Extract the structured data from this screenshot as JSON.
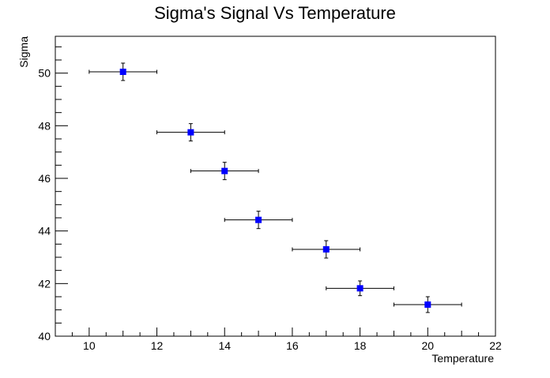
{
  "chart_data": {
    "type": "scatter",
    "title": "Sigma's Signal Vs Temperature",
    "xlabel": "Temperature",
    "ylabel": "Sigma",
    "xlim": [
      9,
      22
    ],
    "ylim": [
      40,
      51.4
    ],
    "x_ticks": [
      10,
      12,
      14,
      16,
      18,
      20,
      22
    ],
    "y_ticks": [
      40,
      42,
      44,
      46,
      48,
      50
    ],
    "grid": false,
    "marker_color": "#0000ff",
    "points": [
      {
        "x": 11,
        "y": 50.05,
        "xerr": 1,
        "yerr": 0.33
      },
      {
        "x": 13,
        "y": 47.75,
        "xerr": 1,
        "yerr": 0.33
      },
      {
        "x": 14,
        "y": 46.28,
        "xerr": 1,
        "yerr": 0.33
      },
      {
        "x": 15,
        "y": 44.42,
        "xerr": 1,
        "yerr": 0.33
      },
      {
        "x": 17,
        "y": 43.3,
        "xerr": 1,
        "yerr": 0.33
      },
      {
        "x": 18,
        "y": 41.82,
        "xerr": 1,
        "yerr": 0.28
      },
      {
        "x": 20,
        "y": 41.2,
        "xerr": 1,
        "yerr": 0.3
      }
    ]
  }
}
